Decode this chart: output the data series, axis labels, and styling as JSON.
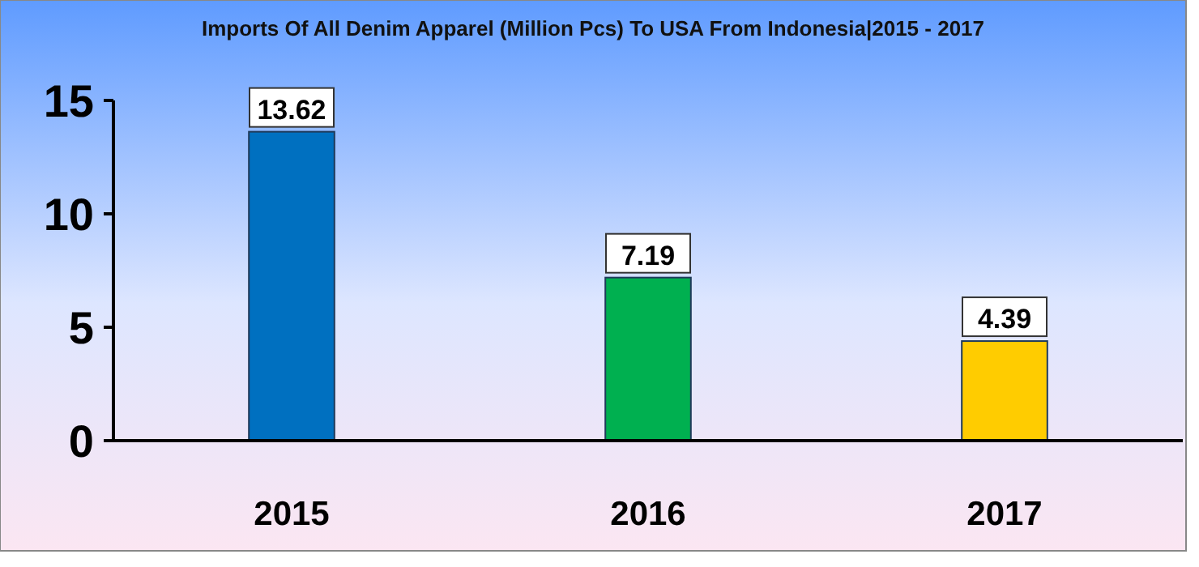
{
  "chart_data": {
    "type": "bar",
    "title": "Imports Of All Denim Apparel (Million Pcs) To USA From Indonesia|2015 - 2017",
    "categories": [
      "2015",
      "2016",
      "2017"
    ],
    "values": [
      13.62,
      7.19,
      4.39
    ],
    "colors": [
      "#0070c0",
      "#00b050",
      "#ffcc00"
    ],
    "ylim": [
      0,
      15
    ],
    "yticks": [
      0,
      5,
      10,
      15
    ],
    "data_labels": true
  }
}
